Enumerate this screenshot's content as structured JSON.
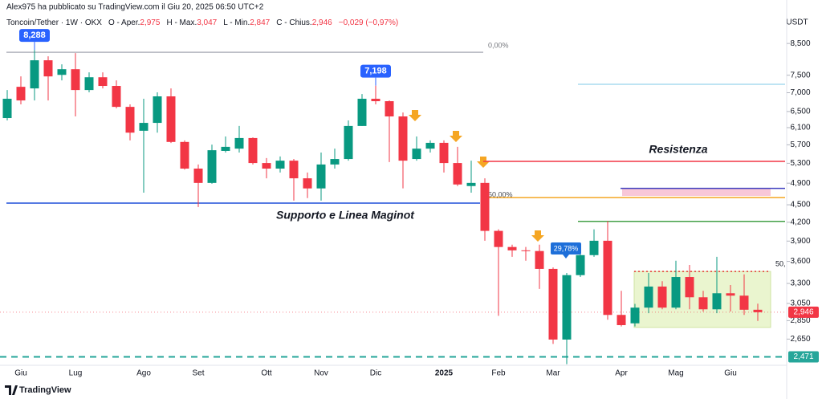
{
  "header": {
    "publisher": "Alex975 ha pubblicato su TradingView.com il Giu 20, 2025 06:50 UTC+2"
  },
  "chart_data": {
    "type": "candlestick",
    "title": "Toncoin/Tether · 1W · OKX",
    "ohlc_legend": [
      {
        "key": "O - Aper.",
        "value": "2,975"
      },
      {
        "key": "H - Max.",
        "value": "3,047"
      },
      {
        "key": "L - Min.",
        "value": "2,847"
      },
      {
        "key": "C - Chius.",
        "value": "2,946"
      }
    ],
    "change": "−0,029 (−0,97%)",
    "y_axis_label": "USDT",
    "categories": [
      null,
      "Giu",
      null,
      null,
      null,
      "Lug",
      null,
      null,
      null,
      null,
      "Ago",
      null,
      null,
      null,
      "Set",
      null,
      null,
      null,
      null,
      "Ott",
      null,
      null,
      null,
      "Nov",
      null,
      null,
      null,
      "Dic",
      null,
      null,
      null,
      null,
      "2025",
      null,
      null,
      null,
      "Feb",
      null,
      null,
      null,
      "Mar",
      null,
      null,
      null,
      null,
      "Apr",
      null,
      null,
      null,
      "Mag",
      null,
      null,
      null,
      "Giu",
      null,
      null
    ],
    "open": [
      6335,
      7165,
      7120,
      7955,
      7510,
      7680,
      7075,
      7440,
      7190,
      6620,
      6025,
      6215,
      6900,
      5765,
      5190,
      4905,
      5565,
      5615,
      5855,
      5305,
      5190,
      5355,
      4995,
      4800,
      5275,
      5390,
      6140,
      6835,
      6770,
      6375,
      5390,
      5615,
      5745,
      5305,
      4845,
      4905,
      4060,
      3810,
      3760,
      3750,
      3495,
      2645,
      3410,
      3690,
      3905,
      2915,
      2820,
      3000,
      3260,
      3000,
      3385,
      3125,
      2980,
      3175,
      3145,
      2975
    ],
    "high": [
      7075,
      7465,
      8288,
      8080,
      7830,
      8185,
      7585,
      7585,
      7350,
      6685,
      6835,
      7010,
      7120,
      5800,
      5275,
      5705,
      5890,
      6140,
      5870,
      5410,
      5445,
      5390,
      5110,
      5530,
      5615,
      6275,
      6965,
      7198,
      6790,
      6475,
      5890,
      5800,
      5800,
      5655,
      5355,
      4995,
      4085,
      3845,
      3810,
      3845,
      3515,
      3440,
      3785,
      4085,
      4220,
      3205,
      3045,
      3440,
      3330,
      3610,
      3550,
      3205,
      3665,
      3280,
      3420,
      3047
    ],
    "low": [
      6275,
      6685,
      6790,
      6790,
      7350,
      6375,
      7010,
      7120,
      6580,
      5800,
      4720,
      5980,
      5740,
      5170,
      4460,
      4890,
      5530,
      5530,
      5275,
      4995,
      5110,
      4575,
      4620,
      4575,
      5190,
      5355,
      6140,
      6685,
      5325,
      4800,
      5355,
      5530,
      5110,
      4845,
      4720,
      3905,
      2905,
      3665,
      3610,
      3230,
      2600,
      2400,
      3385,
      3665,
      2860,
      2785,
      2785,
      2935,
      2980,
      2980,
      2980,
      2955,
      2935,
      2955,
      2915,
      2847
    ],
    "close": [
      6835,
      6790,
      7955,
      7465,
      7680,
      7075,
      7440,
      7190,
      6620,
      5980,
      6215,
      6900,
      5765,
      5190,
      4905,
      5580,
      5655,
      5855,
      5305,
      5190,
      5355,
      4995,
      4800,
      5275,
      5390,
      6140,
      6835,
      6770,
      6375,
      5355,
      5615,
      5745,
      5305,
      4875,
      4905,
      4060,
      3810,
      3760,
      3750,
      3495,
      2645,
      3410,
      3690,
      3905,
      2915,
      2800,
      3000,
      3260,
      3000,
      3385,
      3125,
      2980,
      3175,
      3145,
      2975,
      2946
    ],
    "high_labels": [
      null,
      null,
      "8,288",
      null,
      null,
      null,
      null,
      null,
      null,
      null,
      null,
      null,
      null,
      null,
      null,
      null,
      null,
      null,
      null,
      null,
      null,
      null,
      null,
      null,
      null,
      null,
      null,
      "7,198",
      null,
      null,
      null,
      null,
      null,
      null,
      null,
      null,
      null,
      null,
      null,
      null,
      null,
      null,
      null,
      null,
      null,
      null,
      null,
      null,
      null,
      null,
      null,
      null,
      null,
      null,
      null,
      null
    ],
    "colors": {
      "up": "#089981",
      "down": "#f23645"
    },
    "ylim": [
      2390,
      9470
    ],
    "log_scale": true,
    "grid": false,
    "yticks": [
      {
        "value": 2650,
        "label": "2,650"
      },
      {
        "value": 2850,
        "label": "2,850"
      },
      {
        "value": 3050,
        "label": "3,050"
      },
      {
        "value": 3300,
        "label": "3,300"
      },
      {
        "value": 3600,
        "label": "3,600"
      },
      {
        "value": 3900,
        "label": "3,900"
      },
      {
        "value": 4200,
        "label": "4,200"
      },
      {
        "value": 4500,
        "label": "4,500"
      },
      {
        "value": 4900,
        "label": "4,900"
      },
      {
        "value": 5300,
        "label": "5,300"
      },
      {
        "value": 5700,
        "label": "5,700"
      },
      {
        "value": 6100,
        "label": "6,100"
      },
      {
        "value": 6500,
        "label": "6,500"
      },
      {
        "value": 7000,
        "label": "7,000"
      },
      {
        "value": 7500,
        "label": "7,500"
      },
      {
        "value": 8500,
        "label": "8,500"
      }
    ],
    "last_price": {
      "value": 2946,
      "label": "2,946"
    },
    "levels": [
      {
        "value": 8210,
        "color": "#b2b5be",
        "style": "solid",
        "label": "0,00%"
      },
      {
        "value": 5340,
        "color": "#f23645",
        "style": "solid",
        "label": "Resistenza"
      },
      {
        "value": 4530,
        "color": "#1e4fd8",
        "style": "solid",
        "label": "Supporto e Linea Maginot"
      },
      {
        "value": 4630,
        "color": "#f5a623",
        "style": "solid",
        "label": "50,00%"
      },
      {
        "value": 7235,
        "color": "#a8dcef",
        "style": "solid"
      },
      {
        "value": 4800,
        "color": "#3f3fbf",
        "style": "solid"
      },
      {
        "value": 4215,
        "color": "#43a047",
        "style": "solid"
      },
      {
        "value": 3460,
        "color": "#e53935",
        "style": "dotted",
        "label": "50,"
      },
      {
        "value": 2471,
        "color": "#26a69a",
        "style": "dashed",
        "label": "2,471"
      }
    ],
    "zones": [
      {
        "from": 4660,
        "to": 4800,
        "color": "#f8c7d8"
      },
      {
        "from": 2775,
        "to": 3460,
        "color": "#eaf5cf"
      }
    ],
    "annotations": [
      {
        "text": "29,78%"
      }
    ]
  },
  "footer": {
    "brand": "TradingView"
  }
}
